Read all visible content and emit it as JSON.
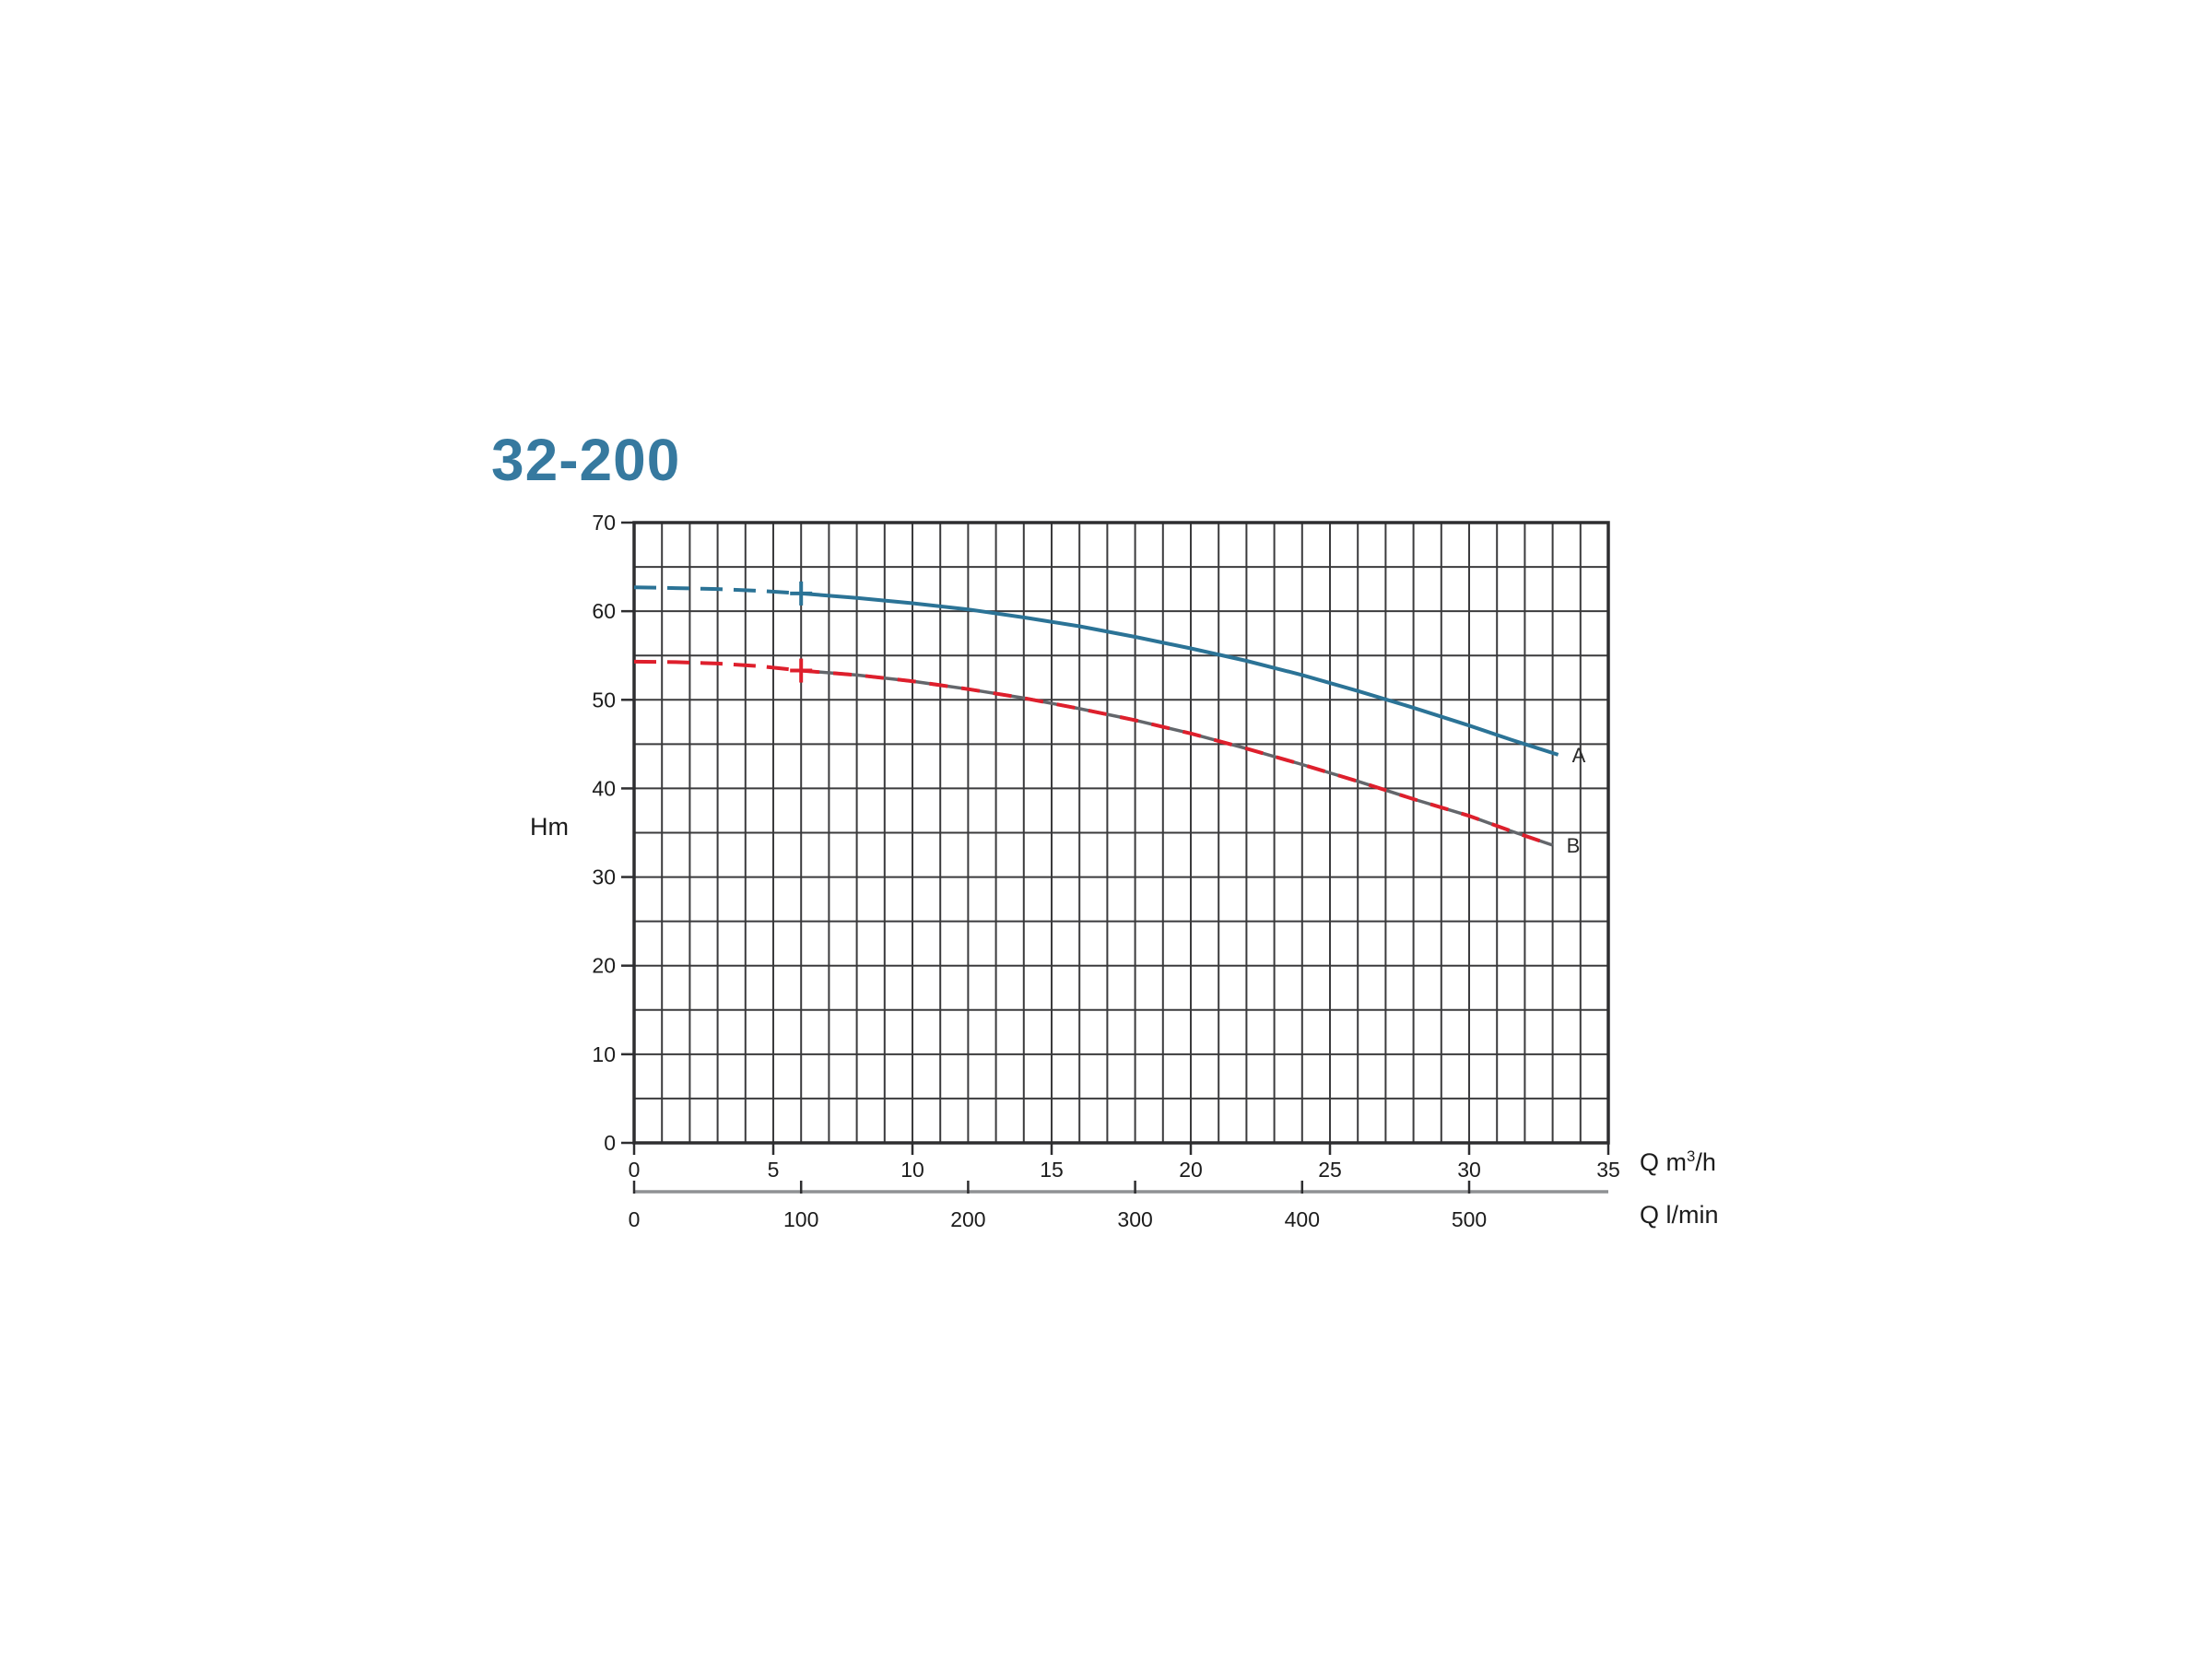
{
  "page": {
    "background": "#ffffff"
  },
  "title": {
    "text": "32-200",
    "color": "#36799f"
  },
  "axes": {
    "y": {
      "unit": "Hm",
      "min": 0,
      "max": 70,
      "grid_step": 5,
      "tick_values": [
        0,
        10,
        20,
        30,
        40,
        50,
        60,
        70
      ],
      "tick_labels": [
        "0",
        "10",
        "20",
        "30",
        "40",
        "50",
        "60",
        "70"
      ]
    },
    "x_primary": {
      "unit_prefix": "Q m",
      "unit_sup": "3",
      "unit_suffix": "/h",
      "min": 0,
      "max": 35,
      "grid_step": 1,
      "tick_values": [
        0,
        5,
        10,
        15,
        20,
        25,
        30,
        35
      ],
      "tick_labels": [
        "0",
        "5",
        "10",
        "15",
        "20",
        "25",
        "30",
        "35"
      ]
    },
    "x_secondary": {
      "unit": "Q l/min",
      "tick_labels": [
        "0",
        "100",
        "200",
        "300",
        "400",
        "500"
      ],
      "tick_positions_m3h": [
        0,
        6,
        12,
        18,
        24,
        30
      ],
      "axis_color": "#8f9194"
    }
  },
  "chart_data": {
    "type": "line",
    "title": "32-200",
    "ylabel": "Hm",
    "xlabel_primary": "Q m3/h",
    "xlabel_secondary": "Q l/min",
    "xlim": [
      0,
      35
    ],
    "ylim": [
      0,
      70
    ],
    "grid": "on",
    "x_grid_step": 1,
    "y_grid_step": 5,
    "series": [
      {
        "name": "A",
        "color": "#2b7396",
        "dashed_until_x": 6,
        "marker": [
          6,
          62
        ],
        "points": [
          [
            0,
            62.7
          ],
          [
            1.5,
            62.6
          ],
          [
            3,
            62.5
          ],
          [
            4.5,
            62.3
          ],
          [
            6,
            62
          ],
          [
            8,
            61.5
          ],
          [
            10,
            60.9
          ],
          [
            12,
            60.2
          ],
          [
            14,
            59.3
          ],
          [
            16,
            58.3
          ],
          [
            18,
            57.1
          ],
          [
            20,
            55.8
          ],
          [
            22,
            54.4
          ],
          [
            24,
            52.8
          ],
          [
            26,
            51
          ],
          [
            28,
            49.1
          ],
          [
            30,
            47.1
          ],
          [
            31.5,
            45.5
          ],
          [
            33.2,
            43.8
          ]
        ]
      },
      {
        "name": "B",
        "color": "#de1f2c",
        "under_color": "#63666b",
        "dashed_until_x": 6,
        "marker": [
          6,
          53.3
        ],
        "points": [
          [
            0,
            54.3
          ],
          [
            1.5,
            54.25
          ],
          [
            3,
            54.1
          ],
          [
            4.5,
            53.8
          ],
          [
            6,
            53.3
          ],
          [
            8,
            52.8
          ],
          [
            10,
            52.1
          ],
          [
            12,
            51.2
          ],
          [
            14,
            50.2
          ],
          [
            16,
            49
          ],
          [
            18,
            47.7
          ],
          [
            20,
            46.2
          ],
          [
            22,
            44.5
          ],
          [
            24,
            42.7
          ],
          [
            26,
            40.8
          ],
          [
            28,
            38.8
          ],
          [
            30,
            36.9
          ],
          [
            31.5,
            35.2
          ],
          [
            33,
            33.6
          ]
        ]
      }
    ]
  },
  "style": {
    "grid_color": "#3b3b3d",
    "frame_color": "#2e2e30",
    "text_color": "#1c1c1c",
    "curve_label_color": "#2b2b2b"
  }
}
